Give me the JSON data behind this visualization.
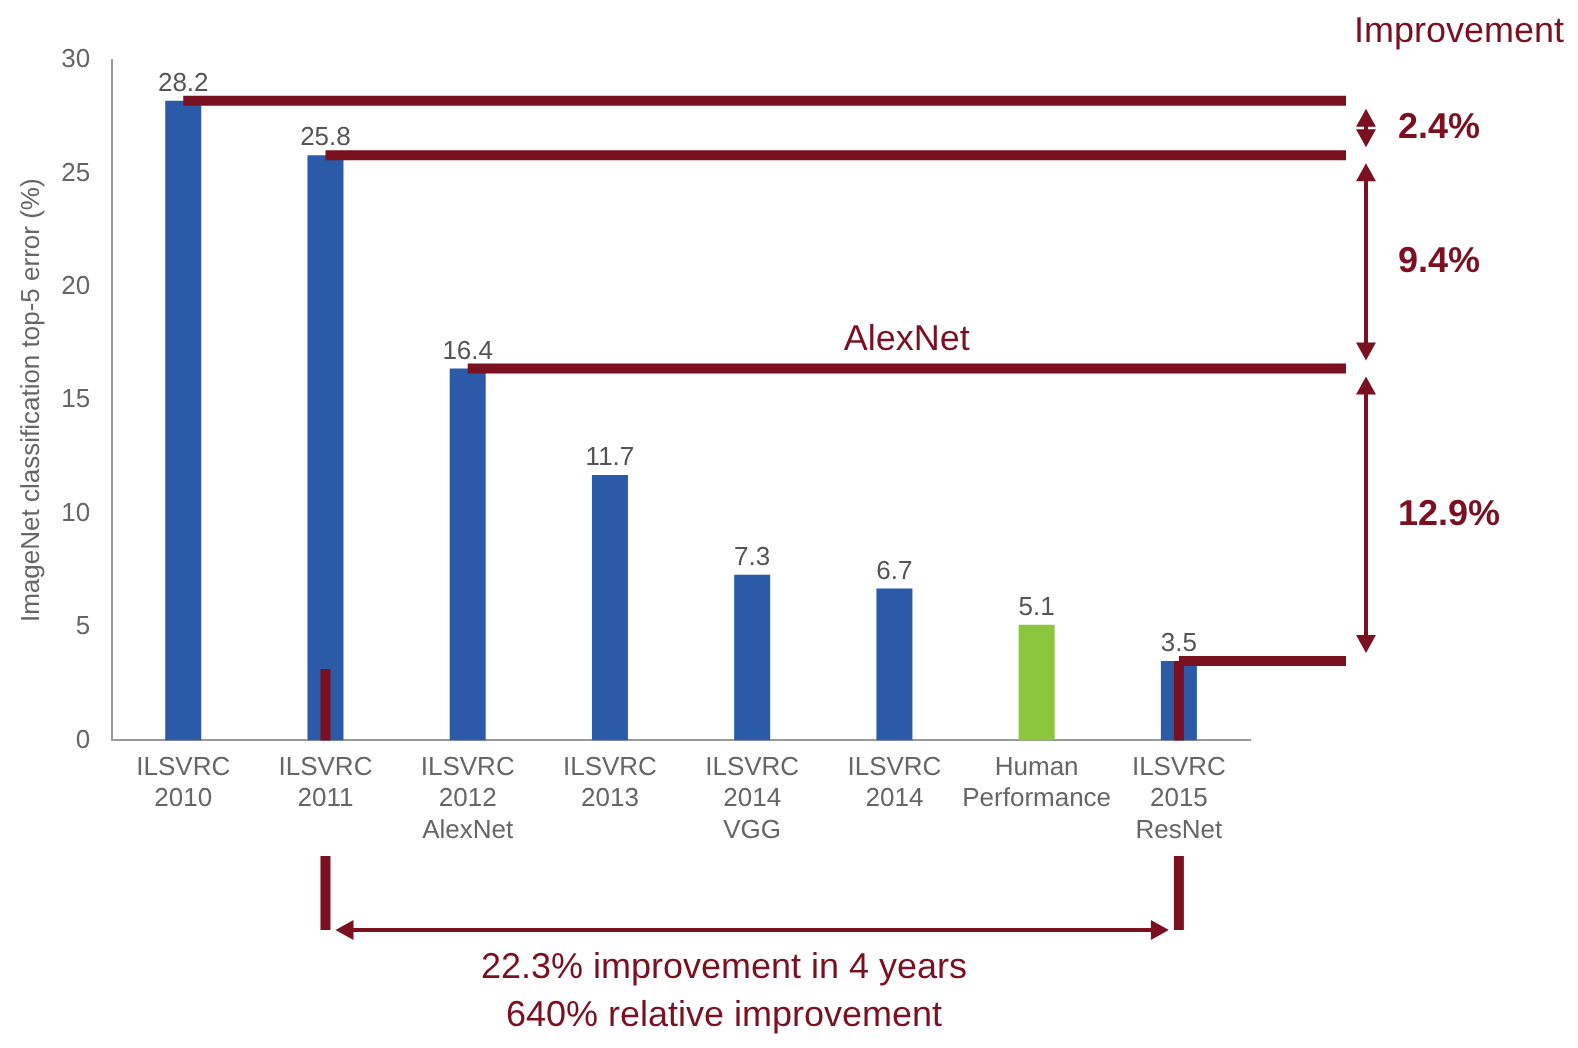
{
  "chart_data": {
    "type": "bar",
    "ylabel": "ImageNet classification top-5 error (%)",
    "categories": [
      "ILSVRC 2010",
      "ILSVRC 2011",
      "ILSVRC 2012 AlexNet",
      "ILSVRC 2013",
      "ILSVRC 2014 VGG",
      "ILSVRC 2014",
      "Human Performance",
      "ILSVRC 2015 ResNet"
    ],
    "values": [
      28.2,
      25.8,
      16.4,
      11.7,
      7.3,
      6.7,
      5.1,
      3.5
    ],
    "colors": [
      "#2b5aa8",
      "#2b5aa8",
      "#2b5aa8",
      "#2b5aa8",
      "#2b5aa8",
      "#2b5aa8",
      "#8cc63f",
      "#2b5aa8"
    ],
    "ylim": [
      0,
      30
    ],
    "yticks": [
      0,
      5,
      10,
      15,
      20,
      25,
      30
    ],
    "grid": false,
    "legend": false,
    "data_labels": true,
    "ref_lines": [
      {
        "axis": "y",
        "value": 28.2,
        "color": "#7b1020"
      },
      {
        "axis": "y",
        "value": 25.8,
        "color": "#7b1020"
      },
      {
        "axis": "y",
        "value": 16.4,
        "label": "AlexNet",
        "color": "#7b1020"
      },
      {
        "axis": "y",
        "value": 3.5,
        "color": "#7b1020"
      }
    ],
    "annotations": [
      "Improvement",
      "2.4%",
      "9.4%",
      "12.9%",
      "22.3% improvement in 4 years",
      "640% relative improvement"
    ]
  }
}
